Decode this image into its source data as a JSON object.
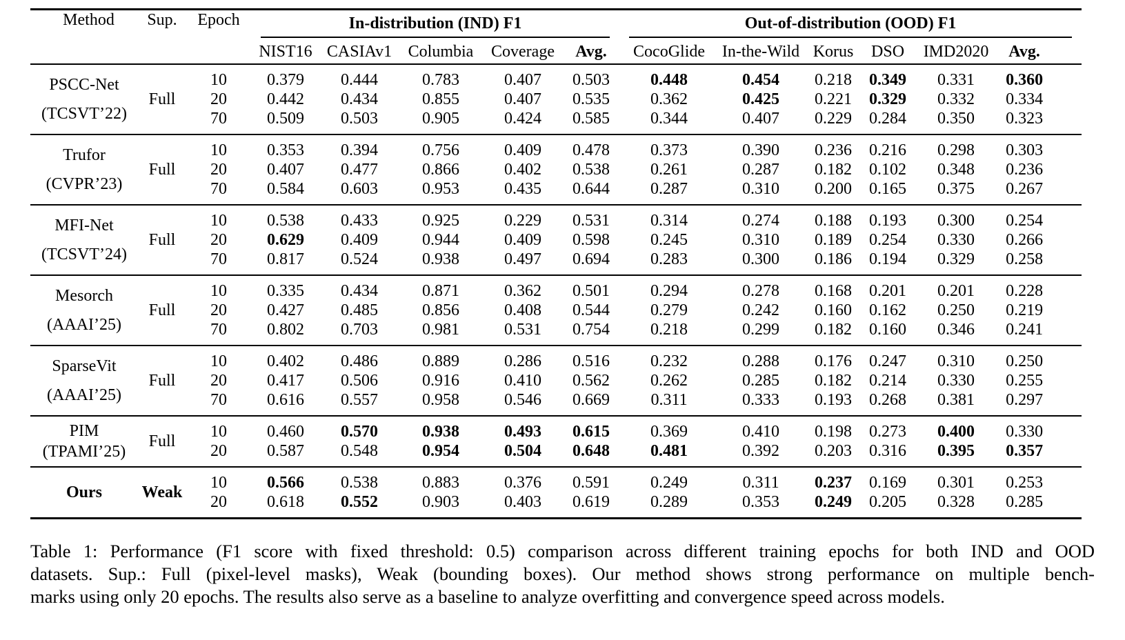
{
  "page": {
    "background": "#ffffff",
    "text_color": "#000000"
  },
  "table": {
    "header": {
      "method": "Method",
      "sup": "Sup.",
      "epoch": "Epoch",
      "ind_group": "In-distribution (IND) F1",
      "ood_group": "Out-of-distribution (OOD) F1",
      "ind_cols": [
        "NIST16",
        "CASIAv1",
        "Columbia",
        "Coverage",
        "Avg."
      ],
      "ood_cols": [
        "CocoGlide",
        "In-the-Wild",
        "Korus",
        "DSO",
        "IMD2020",
        "Avg."
      ]
    },
    "blocks": [
      {
        "method": "PSCC-Net",
        "venue": "(TCSVT’22)",
        "sup": "Full",
        "method_bold": false,
        "sup_bold": false,
        "rows": [
          {
            "epoch": "10",
            "values": [
              "0.379",
              "0.444",
              "0.783",
              "0.407",
              "0.503",
              "0.448",
              "0.454",
              "0.218",
              "0.349",
              "0.331",
              "0.360"
            ],
            "bold": [
              false,
              false,
              false,
              false,
              false,
              true,
              true,
              false,
              true,
              false,
              true
            ]
          },
          {
            "epoch": "20",
            "values": [
              "0.442",
              "0.434",
              "0.855",
              "0.407",
              "0.535",
              "0.362",
              "0.425",
              "0.221",
              "0.329",
              "0.332",
              "0.334"
            ],
            "bold": [
              false,
              false,
              false,
              false,
              false,
              false,
              true,
              false,
              true,
              false,
              false
            ]
          },
          {
            "epoch": "70",
            "values": [
              "0.509",
              "0.503",
              "0.905",
              "0.424",
              "0.585",
              "0.344",
              "0.407",
              "0.229",
              "0.284",
              "0.350",
              "0.323"
            ],
            "bold": [
              false,
              false,
              false,
              false,
              false,
              false,
              false,
              false,
              false,
              false,
              false
            ]
          }
        ]
      },
      {
        "method": "Trufor",
        "venue": "(CVPR’23)",
        "sup": "Full",
        "method_bold": false,
        "sup_bold": false,
        "rows": [
          {
            "epoch": "10",
            "values": [
              "0.353",
              "0.394",
              "0.756",
              "0.409",
              "0.478",
              "0.373",
              "0.390",
              "0.236",
              "0.216",
              "0.298",
              "0.303"
            ],
            "bold": [
              false,
              false,
              false,
              false,
              false,
              false,
              false,
              false,
              false,
              false,
              false
            ]
          },
          {
            "epoch": "20",
            "values": [
              "0.407",
              "0.477",
              "0.866",
              "0.402",
              "0.538",
              "0.261",
              "0.287",
              "0.182",
              "0.102",
              "0.348",
              "0.236"
            ],
            "bold": [
              false,
              false,
              false,
              false,
              false,
              false,
              false,
              false,
              false,
              false,
              false
            ]
          },
          {
            "epoch": "70",
            "values": [
              "0.584",
              "0.603",
              "0.953",
              "0.435",
              "0.644",
              "0.287",
              "0.310",
              "0.200",
              "0.165",
              "0.375",
              "0.267"
            ],
            "bold": [
              false,
              false,
              false,
              false,
              false,
              false,
              false,
              false,
              false,
              false,
              false
            ]
          }
        ]
      },
      {
        "method": "MFI-Net",
        "venue": "(TCSVT’24)",
        "sup": "Full",
        "method_bold": false,
        "sup_bold": false,
        "rows": [
          {
            "epoch": "10",
            "values": [
              "0.538",
              "0.433",
              "0.925",
              "0.229",
              "0.531",
              "0.314",
              "0.274",
              "0.188",
              "0.193",
              "0.300",
              "0.254"
            ],
            "bold": [
              false,
              false,
              false,
              false,
              false,
              false,
              false,
              false,
              false,
              false,
              false
            ]
          },
          {
            "epoch": "20",
            "values": [
              "0.629",
              "0.409",
              "0.944",
              "0.409",
              "0.598",
              "0.245",
              "0.310",
              "0.189",
              "0.254",
              "0.330",
              "0.266"
            ],
            "bold": [
              true,
              false,
              false,
              false,
              false,
              false,
              false,
              false,
              false,
              false,
              false
            ]
          },
          {
            "epoch": "70",
            "values": [
              "0.817",
              "0.524",
              "0.938",
              "0.497",
              "0.694",
              "0.283",
              "0.300",
              "0.186",
              "0.194",
              "0.329",
              "0.258"
            ],
            "bold": [
              false,
              false,
              false,
              false,
              false,
              false,
              false,
              false,
              false,
              false,
              false
            ]
          }
        ]
      },
      {
        "method": "Mesorch",
        "venue": "(AAAI’25)",
        "sup": "Full",
        "method_bold": false,
        "sup_bold": false,
        "rows": [
          {
            "epoch": "10",
            "values": [
              "0.335",
              "0.434",
              "0.871",
              "0.362",
              "0.501",
              "0.294",
              "0.278",
              "0.168",
              "0.201",
              "0.201",
              "0.228"
            ],
            "bold": [
              false,
              false,
              false,
              false,
              false,
              false,
              false,
              false,
              false,
              false,
              false
            ]
          },
          {
            "epoch": "20",
            "values": [
              "0.427",
              "0.485",
              "0.856",
              "0.408",
              "0.544",
              "0.279",
              "0.242",
              "0.160",
              "0.162",
              "0.250",
              "0.219"
            ],
            "bold": [
              false,
              false,
              false,
              false,
              false,
              false,
              false,
              false,
              false,
              false,
              false
            ]
          },
          {
            "epoch": "70",
            "values": [
              "0.802",
              "0.703",
              "0.981",
              "0.531",
              "0.754",
              "0.218",
              "0.299",
              "0.182",
              "0.160",
              "0.346",
              "0.241"
            ],
            "bold": [
              false,
              false,
              false,
              false,
              false,
              false,
              false,
              false,
              false,
              false,
              false
            ]
          }
        ]
      },
      {
        "method": "SparseVit",
        "venue": "(AAAI’25)",
        "sup": "Full",
        "method_bold": false,
        "sup_bold": false,
        "rows": [
          {
            "epoch": "10",
            "values": [
              "0.402",
              "0.486",
              "0.889",
              "0.286",
              "0.516",
              "0.232",
              "0.288",
              "0.176",
              "0.247",
              "0.310",
              "0.250"
            ],
            "bold": [
              false,
              false,
              false,
              false,
              false,
              false,
              false,
              false,
              false,
              false,
              false
            ]
          },
          {
            "epoch": "20",
            "values": [
              "0.417",
              "0.506",
              "0.916",
              "0.410",
              "0.562",
              "0.262",
              "0.285",
              "0.182",
              "0.214",
              "0.330",
              "0.255"
            ],
            "bold": [
              false,
              false,
              false,
              false,
              false,
              false,
              false,
              false,
              false,
              false,
              false
            ]
          },
          {
            "epoch": "70",
            "values": [
              "0.616",
              "0.557",
              "0.958",
              "0.546",
              "0.669",
              "0.311",
              "0.333",
              "0.193",
              "0.268",
              "0.381",
              "0.297"
            ],
            "bold": [
              false,
              false,
              false,
              false,
              false,
              false,
              false,
              false,
              false,
              false,
              false
            ]
          }
        ]
      },
      {
        "method": "PIM",
        "venue": "(TPAMI’25)",
        "sup": "Full",
        "method_bold": false,
        "sup_bold": false,
        "rows": [
          {
            "epoch": "10",
            "values": [
              "0.460",
              "0.570",
              "0.938",
              "0.493",
              "0.615",
              "0.369",
              "0.410",
              "0.198",
              "0.273",
              "0.400",
              "0.330"
            ],
            "bold": [
              false,
              true,
              true,
              true,
              true,
              false,
              false,
              false,
              false,
              true,
              false
            ]
          },
          {
            "epoch": "20",
            "values": [
              "0.587",
              "0.548",
              "0.954",
              "0.504",
              "0.648",
              "0.481",
              "0.392",
              "0.203",
              "0.316",
              "0.395",
              "0.357"
            ],
            "bold": [
              false,
              false,
              true,
              true,
              true,
              true,
              false,
              false,
              false,
              true,
              true
            ]
          }
        ]
      },
      {
        "method": "Ours",
        "venue": null,
        "sup": "Weak",
        "method_bold": true,
        "sup_bold": true,
        "rows": [
          {
            "epoch": "10",
            "values": [
              "0.566",
              "0.538",
              "0.883",
              "0.376",
              "0.591",
              "0.249",
              "0.311",
              "0.237",
              "0.169",
              "0.301",
              "0.253"
            ],
            "bold": [
              true,
              false,
              false,
              false,
              false,
              false,
              false,
              true,
              false,
              false,
              false
            ]
          },
          {
            "epoch": "20",
            "values": [
              "0.618",
              "0.552",
              "0.903",
              "0.403",
              "0.619",
              "0.289",
              "0.353",
              "0.249",
              "0.205",
              "0.328",
              "0.285"
            ],
            "bold": [
              false,
              true,
              false,
              false,
              false,
              false,
              false,
              true,
              false,
              false,
              false
            ]
          }
        ]
      }
    ],
    "caption_lines": [
      "Table 1: Performance (F1 score with fixed threshold: 0.5) comparison across different training epochs for both IND and OOD",
      "datasets. Sup.: Full (pixel-level masks), Weak (bounding boxes). Our method shows strong performance on multiple bench-",
      "marks using only 20 epochs. The results also serve as a baseline to analyze overfitting and convergence speed across models."
    ]
  }
}
